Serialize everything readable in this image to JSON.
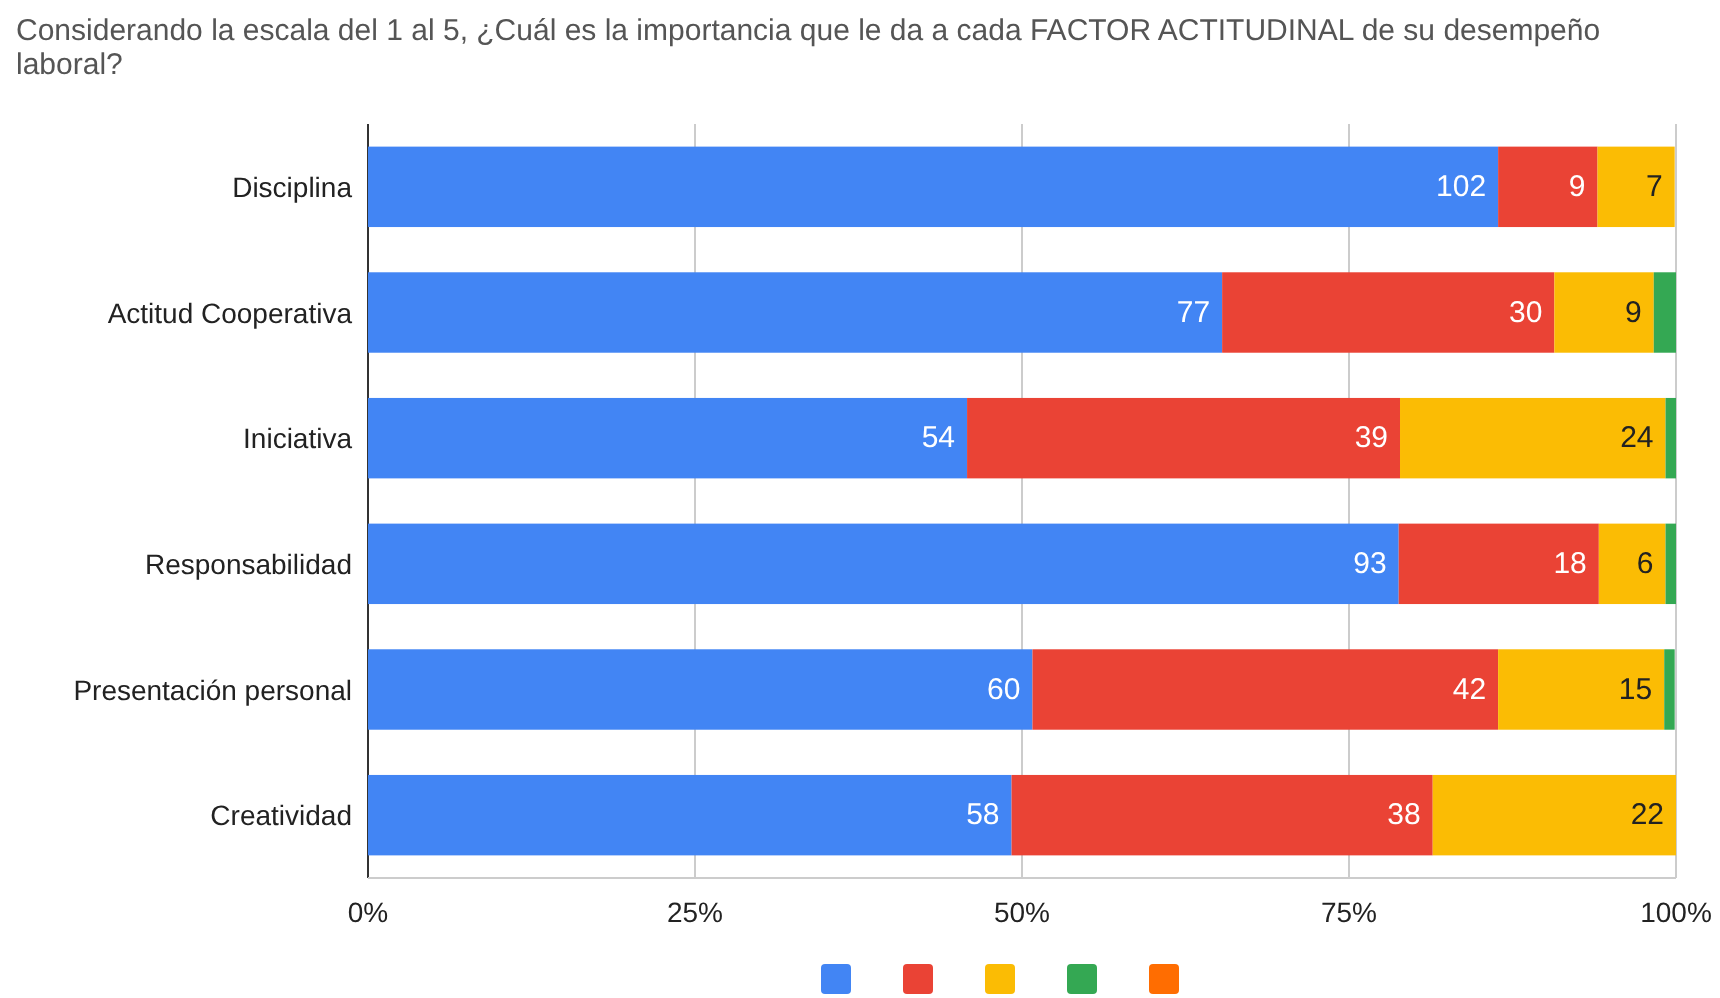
{
  "chart_data": {
    "type": "bar",
    "orientation": "horizontal",
    "stacked": true,
    "title": "Considerando la escala del 1 al 5, ¿Cuál es la importancia que le da a cada FACTOR ACTITUDINAL de su desempeño laboral?",
    "categories": [
      "Disciplina",
      "Actitud Cooperativa",
      "Iniciativa",
      "Responsabilidad",
      "Presentación personal",
      "Creatividad"
    ],
    "series": [
      {
        "color": "#4285f4",
        "values": [
          86.4,
          65.3,
          45.8,
          78.8,
          50.8,
          49.2
        ]
      },
      {
        "color": "#ea4335",
        "values": [
          7.6,
          25.4,
          33.1,
          15.3,
          35.6,
          32.2
        ]
      },
      {
        "color": "#fbbc04",
        "values": [
          5.9,
          7.6,
          20.3,
          5.1,
          12.7,
          18.6
        ]
      },
      {
        "color": "#34a853",
        "values": [
          0,
          1.7,
          0.8,
          0.8,
          0.8,
          0
        ]
      },
      {
        "color": "#ff6d01",
        "values": [
          0,
          0,
          0,
          0,
          0,
          0
        ]
      }
    ],
    "annotations": [
      {
        "text": "102",
        "x": 86.4,
        "y": "Disciplina"
      },
      {
        "text": "9",
        "x": 94,
        "y": "Disciplina"
      },
      {
        "text": "7",
        "x": 99.9,
        "y": "Disciplina"
      },
      {
        "text": "77",
        "x": 65.3,
        "y": "Actitud Cooperativa"
      },
      {
        "text": "30",
        "x": 90.7,
        "y": "Actitud Cooperativa"
      },
      {
        "text": "9",
        "x": 98.3,
        "y": "Actitud Cooperativa"
      },
      {
        "text": "54",
        "x": 45.8,
        "y": "Iniciativa"
      },
      {
        "text": "39",
        "x": 78.9,
        "y": "Iniciativa"
      },
      {
        "text": "24",
        "x": 99.2,
        "y": "Iniciativa"
      },
      {
        "text": "93",
        "x": 78.8,
        "y": "Responsabilidad"
      },
      {
        "text": "18",
        "x": 94.1,
        "y": "Responsabilidad"
      },
      {
        "text": "6",
        "x": 99.2,
        "y": "Responsabilidad"
      },
      {
        "text": "60",
        "x": 50.8,
        "y": "Presentación personal"
      },
      {
        "text": "42",
        "x": 86.4,
        "y": "Presentación personal"
      },
      {
        "text": "15",
        "x": 99.1,
        "y": "Presentación personal"
      },
      {
        "text": "58",
        "x": 49.2,
        "y": "Creatividad"
      },
      {
        "text": "38",
        "x": 81.4,
        "y": "Creatividad"
      },
      {
        "text": "22",
        "x": 100,
        "y": "Creatividad"
      }
    ],
    "xlim": [
      0,
      100
    ],
    "xticks": [
      {
        "value": 0,
        "label": "0%"
      },
      {
        "value": 25,
        "label": "25%"
      },
      {
        "value": 50,
        "label": "50%"
      },
      {
        "value": 75,
        "label": "75%"
      },
      {
        "value": 100,
        "label": "100%"
      }
    ],
    "grid": "x"
  }
}
